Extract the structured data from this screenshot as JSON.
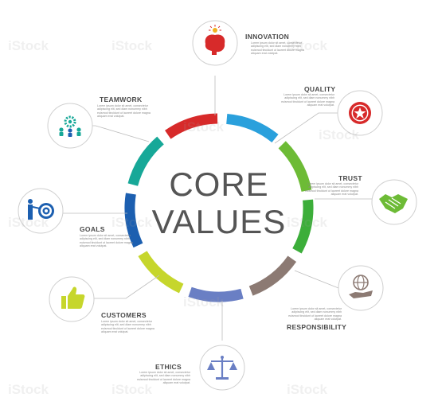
{
  "title_line1": "CORE",
  "title_line2": "VALUES",
  "watermark": "iStock",
  "placeholder_text": "Lorem ipsum dolor sit amet, consectetur adipiscing elit, sed diam nonummy nibh euismod tincidunt ut laoreet dolore magna aliquam erat volutpat.",
  "items": [
    {
      "key": "innovation",
      "label": "INNOVATION",
      "icon": "brain-lightbulb-icon",
      "color": "#d72a2a"
    },
    {
      "key": "quality",
      "label": "QUALITY",
      "icon": "star-badge-icon",
      "color": "#d72a2a"
    },
    {
      "key": "trust",
      "label": "TRUST",
      "icon": "handshake-icon",
      "color": "#6dbb36"
    },
    {
      "key": "responsibility",
      "label": "RESPONSIBILITY",
      "icon": "globe-hand-icon",
      "color": "#8c7a73"
    },
    {
      "key": "ethics",
      "label": "ETHICS",
      "icon": "scales-icon",
      "color": "#6a7fc4"
    },
    {
      "key": "customers",
      "label": "CUSTOMERS",
      "icon": "thumbs-up-icon",
      "color": "#bfcf2a"
    },
    {
      "key": "goals",
      "label": "GOALS",
      "icon": "target-person-icon",
      "color": "#1c5fb0"
    },
    {
      "key": "teamwork",
      "label": "TEAMWORK",
      "icon": "team-gear-icon",
      "color": "#17a898"
    }
  ],
  "ring_colors": [
    "#2aa0dc",
    "#6dbb36",
    "#3cae3a",
    "#8c7a73",
    "#6a7fc4",
    "#c6d62c",
    "#1c5fb0",
    "#17a898",
    "#d72a2a"
  ]
}
